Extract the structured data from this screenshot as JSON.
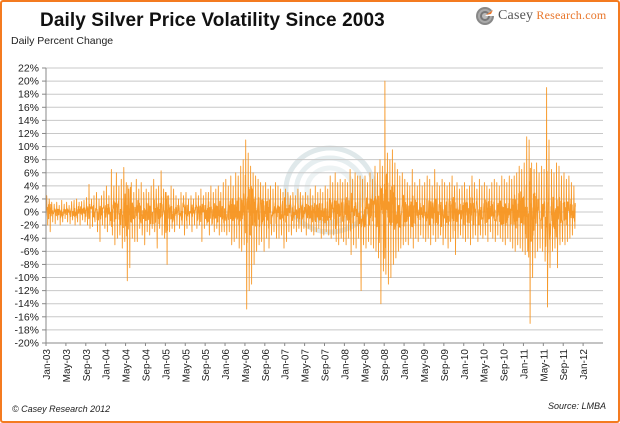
{
  "header": {
    "title": "Daily Silver Price Volatility Since 2003",
    "brand_prefix": "Casey",
    "brand_suffix": "Research.com"
  },
  "footer": {
    "copyright": "© Casey Research 2012",
    "source": "Source: LMBA"
  },
  "colors": {
    "series": "#f7941d",
    "border": "#f47b20",
    "grid": "#c8c8c8"
  },
  "chart_data": {
    "type": "line",
    "title": "Daily Silver Price Volatility Since 2003",
    "xlabel": "",
    "ylabel": "Daily Percent Change",
    "ylim": [
      -20,
      22
    ],
    "y_ticks": [
      22,
      20,
      18,
      16,
      14,
      12,
      10,
      8,
      6,
      4,
      2,
      0,
      -2,
      -4,
      -6,
      -8,
      -10,
      -12,
      -14,
      -16,
      -18,
      -20
    ],
    "y_tick_labels": [
      "22%",
      "20%",
      "18%",
      "16%",
      "14%",
      "12%",
      "10%",
      "8%",
      "6%",
      "4%",
      "2%",
      "0%",
      "-2%",
      "-4%",
      "-6%",
      "-8%",
      "-10%",
      "-12%",
      "-14%",
      "-16%",
      "-18%",
      "-20%"
    ],
    "x_tick_labels": [
      "Jan-03",
      "May-03",
      "Sep-03",
      "Jan-04",
      "May-04",
      "Sep-04",
      "Jan-05",
      "May-05",
      "Sep-05",
      "Jan-06",
      "May-06",
      "Sep-06",
      "Jan-07",
      "May-07",
      "Sep-07",
      "Jan-08",
      "May-08",
      "Sep-08",
      "Jan-09",
      "May-09",
      "Sep-09",
      "Jan-10",
      "May-10",
      "Sep-10",
      "Jan-11",
      "May-11",
      "Sep-11",
      "Jan-12"
    ],
    "x_range_months": [
      0,
      112
    ],
    "grid": true,
    "legend": "none",
    "series": [
      {
        "name": "Daily Percent Change",
        "note": "Approximate range envelope per period, read from chart: [month_offset_from_Jan-03, high %, low %]",
        "envelope": [
          [
            0.0,
            2.5,
            -2.0
          ],
          [
            0.5,
            2.0,
            -3.0
          ],
          [
            1.0,
            1.5,
            -1.5
          ],
          [
            1.5,
            1.2,
            -1.8
          ],
          [
            2.0,
            1.5,
            -1.2
          ],
          [
            2.5,
            1.0,
            -2.0
          ],
          [
            3.0,
            1.8,
            -1.5
          ],
          [
            3.5,
            1.2,
            -1.0
          ],
          [
            4.0,
            1.5,
            -1.5
          ],
          [
            4.5,
            1.0,
            -1.8
          ],
          [
            5.0,
            1.6,
            -1.2
          ],
          [
            5.5,
            1.8,
            -2.0
          ],
          [
            6.0,
            2.0,
            -1.5
          ],
          [
            6.5,
            1.5,
            -2.0
          ],
          [
            7.0,
            1.6,
            -1.2
          ],
          [
            7.5,
            1.8,
            -1.5
          ],
          [
            8.0,
            2.2,
            -2.0
          ],
          [
            8.5,
            4.2,
            -2.5
          ],
          [
            9.0,
            2.0,
            -2.2
          ],
          [
            9.5,
            2.5,
            -1.5
          ],
          [
            10.0,
            3.0,
            -3.0
          ],
          [
            10.5,
            2.0,
            -4.5
          ],
          [
            11.0,
            2.5,
            -2.0
          ],
          [
            11.5,
            3.2,
            -2.5
          ],
          [
            12.0,
            4.0,
            -3.0
          ],
          [
            12.5,
            2.5,
            -2.0
          ],
          [
            13.0,
            6.5,
            -3.5
          ],
          [
            13.5,
            4.0,
            -5.0
          ],
          [
            14.0,
            6.0,
            -4.0
          ],
          [
            14.5,
            4.0,
            -3.5
          ],
          [
            15.0,
            5.0,
            -5.5
          ],
          [
            15.5,
            6.8,
            -4.5
          ],
          [
            16.0,
            4.5,
            -10.5
          ],
          [
            16.5,
            3.5,
            -8.5
          ],
          [
            17.0,
            4.5,
            -4.0
          ],
          [
            17.5,
            3.0,
            -4.5
          ],
          [
            18.0,
            5.0,
            -4.5
          ],
          [
            18.5,
            3.5,
            -2.5
          ],
          [
            19.0,
            4.5,
            -3.5
          ],
          [
            19.5,
            3.0,
            -5.0
          ],
          [
            20.0,
            3.5,
            -3.0
          ],
          [
            20.5,
            3.0,
            -3.5
          ],
          [
            21.0,
            4.0,
            -2.5
          ],
          [
            21.5,
            5.0,
            -3.0
          ],
          [
            22.0,
            3.5,
            -5.5
          ],
          [
            22.5,
            4.0,
            -2.5
          ],
          [
            23.0,
            6.3,
            -3.5
          ],
          [
            23.5,
            3.5,
            -4.0
          ],
          [
            24.0,
            3.0,
            -8.0
          ],
          [
            24.5,
            2.5,
            -3.0
          ],
          [
            25.0,
            4.0,
            -2.5
          ],
          [
            25.5,
            3.5,
            -3.0
          ],
          [
            26.0,
            2.5,
            -2.0
          ],
          [
            26.5,
            2.0,
            -2.5
          ],
          [
            27.0,
            3.0,
            -2.0
          ],
          [
            27.5,
            2.5,
            -3.5
          ],
          [
            28.0,
            3.0,
            -2.5
          ],
          [
            28.5,
            2.0,
            -2.0
          ],
          [
            29.0,
            2.5,
            -3.0
          ],
          [
            29.5,
            2.0,
            -2.0
          ],
          [
            30.0,
            3.0,
            -2.5
          ],
          [
            30.5,
            2.5,
            -2.0
          ],
          [
            31.0,
            3.5,
            -4.5
          ],
          [
            31.5,
            2.5,
            -2.5
          ],
          [
            32.0,
            3.0,
            -2.0
          ],
          [
            32.5,
            3.0,
            -3.5
          ],
          [
            33.0,
            4.0,
            -2.0
          ],
          [
            33.5,
            3.0,
            -3.0
          ],
          [
            34.0,
            3.5,
            -2.5
          ],
          [
            34.5,
            4.0,
            -3.5
          ],
          [
            35.0,
            3.0,
            -3.0
          ],
          [
            35.5,
            4.5,
            -3.0
          ],
          [
            36.0,
            5.0,
            -3.5
          ],
          [
            36.5,
            4.0,
            -3.0
          ],
          [
            37.0,
            5.5,
            -5.0
          ],
          [
            37.5,
            4.0,
            -4.5
          ],
          [
            38.0,
            6.0,
            -4.0
          ],
          [
            38.5,
            5.5,
            -5.5
          ],
          [
            39.0,
            7.0,
            -6.0
          ],
          [
            39.5,
            8.0,
            -5.0
          ],
          [
            40.0,
            11.0,
            -14.8
          ],
          [
            40.5,
            9.0,
            -12.0
          ],
          [
            41.0,
            7.0,
            -11.0
          ],
          [
            41.5,
            6.0,
            -8.0
          ],
          [
            42.0,
            5.5,
            -6.0
          ],
          [
            42.5,
            5.0,
            -5.0
          ],
          [
            43.0,
            4.5,
            -4.5
          ],
          [
            43.5,
            4.0,
            -6.0
          ],
          [
            44.0,
            4.5,
            -4.0
          ],
          [
            44.5,
            3.5,
            -5.5
          ],
          [
            45.0,
            4.0,
            -3.5
          ],
          [
            45.5,
            3.5,
            -3.0
          ],
          [
            46.0,
            4.5,
            -4.0
          ],
          [
            46.5,
            4.0,
            -4.0
          ],
          [
            47.0,
            3.5,
            -3.5
          ],
          [
            47.5,
            3.0,
            -5.5
          ],
          [
            48.0,
            3.5,
            -4.5
          ],
          [
            48.5,
            3.0,
            -3.0
          ],
          [
            49.0,
            2.5,
            -3.5
          ],
          [
            49.5,
            3.0,
            -2.5
          ],
          [
            50.0,
            2.5,
            -3.0
          ],
          [
            50.5,
            3.5,
            -2.5
          ],
          [
            51.0,
            3.0,
            -3.0
          ],
          [
            51.5,
            2.5,
            -2.5
          ],
          [
            52.0,
            3.0,
            -3.5
          ],
          [
            52.5,
            2.5,
            -2.5
          ],
          [
            53.0,
            3.5,
            -3.0
          ],
          [
            53.5,
            2.5,
            -3.5
          ],
          [
            54.0,
            4.0,
            -3.0
          ],
          [
            54.5,
            3.0,
            -2.5
          ],
          [
            55.0,
            3.5,
            -4.0
          ],
          [
            55.5,
            3.0,
            -3.5
          ],
          [
            56.0,
            4.0,
            -3.0
          ],
          [
            56.5,
            3.5,
            -3.5
          ],
          [
            57.0,
            5.5,
            -4.0
          ],
          [
            57.5,
            4.5,
            -3.5
          ],
          [
            58.0,
            6.0,
            -4.5
          ],
          [
            58.5,
            4.5,
            -5.0
          ],
          [
            59.0,
            5.0,
            -4.0
          ],
          [
            59.5,
            4.5,
            -4.5
          ],
          [
            60.0,
            5.0,
            -5.0
          ],
          [
            60.5,
            4.5,
            -4.0
          ],
          [
            61.0,
            6.5,
            -6.5
          ],
          [
            61.5,
            5.0,
            -5.0
          ],
          [
            62.0,
            6.0,
            -5.5
          ],
          [
            62.5,
            5.5,
            -4.0
          ],
          [
            63.0,
            5.5,
            -12.0
          ],
          [
            63.5,
            5.0,
            -5.0
          ],
          [
            64.0,
            5.5,
            -5.5
          ],
          [
            64.5,
            4.5,
            -4.5
          ],
          [
            65.0,
            6.0,
            -5.0
          ],
          [
            65.5,
            5.0,
            -5.5
          ],
          [
            66.0,
            7.0,
            -6.0
          ],
          [
            66.5,
            6.0,
            -7.0
          ],
          [
            67.0,
            8.0,
            -14.0
          ],
          [
            67.5,
            7.0,
            -9.0
          ],
          [
            68.0,
            20.0,
            -9.5
          ],
          [
            68.5,
            9.0,
            -11.0
          ],
          [
            69.0,
            8.0,
            -10.0
          ],
          [
            69.5,
            9.5,
            -8.0
          ],
          [
            70.0,
            7.5,
            -7.0
          ],
          [
            70.5,
            6.5,
            -6.0
          ],
          [
            71.0,
            5.5,
            -5.5
          ],
          [
            71.5,
            6.0,
            -5.0
          ],
          [
            72.0,
            5.0,
            -4.5
          ],
          [
            72.5,
            4.5,
            -5.0
          ],
          [
            73.0,
            4.0,
            -4.0
          ],
          [
            73.5,
            6.5,
            -5.5
          ],
          [
            74.0,
            4.5,
            -4.0
          ],
          [
            74.5,
            4.0,
            -4.5
          ],
          [
            75.0,
            5.0,
            -3.5
          ],
          [
            75.5,
            4.0,
            -4.0
          ],
          [
            76.0,
            4.5,
            -4.5
          ],
          [
            76.5,
            5.5,
            -4.0
          ],
          [
            77.0,
            5.0,
            -5.0
          ],
          [
            77.5,
            4.0,
            -3.5
          ],
          [
            78.0,
            6.5,
            -4.5
          ],
          [
            78.5,
            4.5,
            -4.0
          ],
          [
            79.0,
            4.0,
            -3.5
          ],
          [
            79.5,
            5.0,
            -5.0
          ],
          [
            80.0,
            4.5,
            -4.0
          ],
          [
            80.5,
            4.0,
            -5.5
          ],
          [
            81.0,
            4.5,
            -4.5
          ],
          [
            81.5,
            5.5,
            -4.0
          ],
          [
            82.0,
            4.0,
            -6.5
          ],
          [
            82.5,
            4.5,
            -4.0
          ],
          [
            83.0,
            3.5,
            -3.5
          ],
          [
            83.5,
            4.0,
            -4.0
          ],
          [
            84.0,
            4.5,
            -4.5
          ],
          [
            84.5,
            3.5,
            -4.0
          ],
          [
            85.0,
            4.0,
            -5.0
          ],
          [
            85.5,
            5.5,
            -4.0
          ],
          [
            86.0,
            4.5,
            -3.5
          ],
          [
            86.5,
            3.5,
            -4.5
          ],
          [
            87.0,
            5.0,
            -3.5
          ],
          [
            87.5,
            4.0,
            -4.0
          ],
          [
            88.0,
            4.5,
            -3.5
          ],
          [
            88.5,
            4.0,
            -4.5
          ],
          [
            89.0,
            3.5,
            -3.0
          ],
          [
            89.5,
            4.5,
            -4.0
          ],
          [
            90.0,
            5.0,
            -4.5
          ],
          [
            90.5,
            4.5,
            -3.5
          ],
          [
            91.0,
            4.0,
            -4.0
          ],
          [
            91.5,
            5.5,
            -4.5
          ],
          [
            92.0,
            5.0,
            -5.0
          ],
          [
            92.5,
            4.5,
            -4.0
          ],
          [
            93.0,
            5.5,
            -4.5
          ],
          [
            93.5,
            5.0,
            -5.5
          ],
          [
            94.0,
            5.5,
            -6.0
          ],
          [
            94.5,
            6.0,
            -5.0
          ],
          [
            95.0,
            7.0,
            -5.5
          ],
          [
            95.5,
            6.5,
            -6.0
          ],
          [
            96.0,
            7.5,
            -6.5
          ],
          [
            96.5,
            11.5,
            -6.0
          ],
          [
            97.0,
            11.0,
            -17.0
          ],
          [
            97.5,
            7.5,
            -10.0
          ],
          [
            98.0,
            6.5,
            -7.0
          ],
          [
            98.5,
            7.5,
            -6.0
          ],
          [
            99.0,
            6.0,
            -5.5
          ],
          [
            99.5,
            7.0,
            -6.0
          ],
          [
            100.0,
            6.5,
            -7.5
          ],
          [
            100.5,
            19.0,
            -14.5
          ],
          [
            101.0,
            11.0,
            -8.5
          ],
          [
            101.5,
            6.5,
            -6.0
          ],
          [
            102.0,
            6.0,
            -5.5
          ],
          [
            102.5,
            7.5,
            -8.5
          ],
          [
            103.0,
            7.0,
            -5.0
          ],
          [
            103.5,
            5.5,
            -4.5
          ],
          [
            104.0,
            6.0,
            -5.0
          ],
          [
            104.5,
            5.0,
            -4.5
          ],
          [
            105.0,
            5.5,
            -4.0
          ],
          [
            105.5,
            4.5,
            -3.5
          ],
          [
            106.0,
            4.0,
            -2.5
          ]
        ]
      }
    ]
  }
}
